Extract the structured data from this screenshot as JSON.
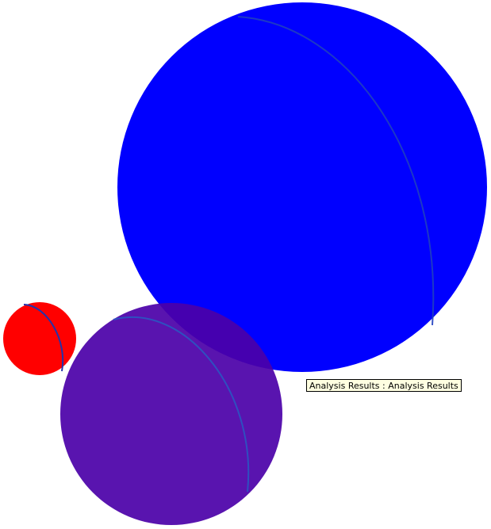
{
  "viewport": {
    "background": "#ffffff"
  },
  "objects": [
    {
      "name": "large-blue-sphere",
      "fill": "#0000ff",
      "outline_arc": "#1f3fbf"
    },
    {
      "name": "small-red-sphere",
      "fill": "#ff0000",
      "outline_arc": "#2233aa"
    },
    {
      "name": "purple-sphere",
      "fill": "#4b00a8",
      "fill_opacity": 0.92,
      "outline_arc": "#2f4fc0"
    }
  ],
  "tooltip": {
    "text": "Analysis Results : Analysis Results",
    "background": "#ffffe1"
  }
}
